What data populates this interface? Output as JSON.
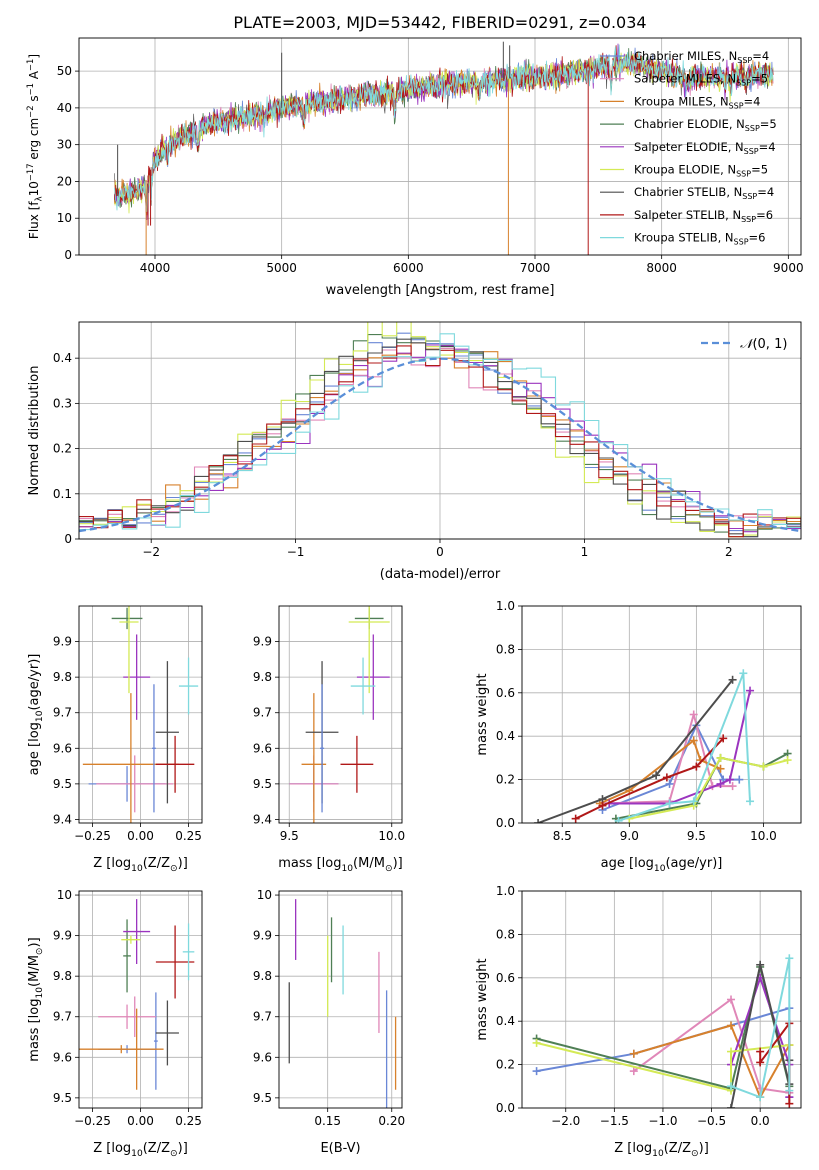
{
  "title": "PLATE=2003, MJD=53442, FIBERID=0291, z=0.034",
  "series_styles": [
    {
      "name": "Chabrier MILES",
      "nssp": "4",
      "color": "#6a87d6"
    },
    {
      "name": "Salpeter MILES",
      "nssp": "5",
      "color": "#e087b8"
    },
    {
      "name": "Kroupa MILES",
      "nssp": "4",
      "color": "#d7812c"
    },
    {
      "name": "Chabrier ELODIE",
      "nssp": "5",
      "color": "#4f7f55"
    },
    {
      "name": "Salpeter ELODIE",
      "nssp": "4",
      "color": "#9b35bf"
    },
    {
      "name": "Kroupa ELODIE",
      "nssp": "5",
      "color": "#d4ea55"
    },
    {
      "name": "Chabrier STELIB",
      "nssp": "4",
      "color": "#4d4d4d"
    },
    {
      "name": "Salpeter STELIB",
      "nssp": "6",
      "color": "#b01818"
    },
    {
      "name": "Kroupa STELIB",
      "nssp": "6",
      "color": "#7fd9dd"
    }
  ],
  "chart_data": [
    {
      "id": "spectrum",
      "type": "line",
      "xlabel": "wavelength [Angstrom, rest frame]",
      "ylabel_parts": [
        "Flux [f",
        "λ",
        "10",
        "−17",
        " erg cm",
        "−2",
        " s",
        "−1",
        " A",
        "−1",
        "]"
      ],
      "xlim": [
        3400,
        9100
      ],
      "ylim": [
        0,
        59
      ],
      "xticks": [
        4000,
        5000,
        6000,
        7000,
        8000,
        9000
      ],
      "yticks": [
        0,
        10,
        20,
        30,
        40,
        50
      ],
      "continuum_x": [
        3700,
        3800,
        3900,
        4000,
        4100,
        4200,
        4300,
        4400,
        4500,
        4600,
        4800,
        5000,
        5200,
        5400,
        5600,
        5800,
        6000,
        6200,
        6400,
        6600,
        6800,
        7000,
        7200,
        7400,
        7600,
        7800,
        8000,
        8200,
        8400,
        8600,
        8800
      ],
      "continuum_y": [
        16,
        17,
        18,
        26,
        30,
        32,
        33,
        35,
        36,
        37,
        38,
        40,
        41,
        42,
        43,
        44,
        45,
        46,
        47,
        47,
        48,
        48.5,
        49,
        50,
        52,
        52,
        50,
        48,
        48.5,
        49,
        49
      ],
      "line_features": [
        [
          3934,
          -8
        ],
        [
          3969,
          -7
        ],
        [
          4102,
          -3
        ],
        [
          4340,
          -4
        ],
        [
          4861,
          -3
        ],
        [
          5175,
          -5
        ],
        [
          5892,
          -6
        ],
        [
          6563,
          -3
        ],
        [
          7600,
          -6
        ],
        [
          8200,
          -2
        ],
        [
          8500,
          -3
        ],
        [
          8542,
          -4
        ],
        [
          8662,
          -3
        ]
      ],
      "spikes": [
        [
          3930,
          0,
          2
        ],
        [
          6790,
          0,
          2
        ],
        [
          7420,
          0,
          7
        ],
        [
          5000,
          55,
          6
        ],
        [
          6750,
          58,
          6
        ],
        [
          6800,
          57,
          6
        ],
        [
          3705,
          30,
          6
        ],
        [
          3945,
          8,
          7
        ],
        [
          3965,
          8,
          7
        ]
      ],
      "legend_position": "upper right"
    },
    {
      "id": "residuals",
      "type": "histogram",
      "xlabel": "(data-model)/error",
      "ylabel": "Normed distribution",
      "xlim": [
        -2.5,
        2.5
      ],
      "ylim": [
        0,
        0.48
      ],
      "xticks": [
        -2,
        -1,
        0,
        1,
        2
      ],
      "yticks": [
        0,
        0.1,
        0.2,
        0.3,
        0.4
      ],
      "bin_width": 0.1,
      "gaussian_label_parts": [
        "𝒩",
        "(0, 1)"
      ],
      "gaussian_color": "#5a8fd8",
      "legend_position": "upper right"
    },
    {
      "id": "age-vs-Z",
      "type": "errorbar",
      "xlabel_parts": [
        "Z [log",
        "10",
        "(Z/Z",
        "⊙",
        ")]"
      ],
      "ylabel_parts": [
        "age  [log",
        "10",
        "(age/yr)]"
      ],
      "xlim": [
        -0.32,
        0.32
      ],
      "ylim": [
        9.39,
        10.0
      ],
      "xticks": [
        -0.25,
        0,
        0.25
      ],
      "xtick_labels": [
        "−0.25",
        "0.00",
        "0.25"
      ],
      "yticks": [
        9.4,
        9.5,
        9.6,
        9.7,
        9.8,
        9.9
      ],
      "points": [
        {
          "x": -0.07,
          "y": 9.5,
          "xerr": 0.2,
          "yerr": 0.05,
          "c": 0
        },
        {
          "x": -0.03,
          "y": 9.5,
          "xerr": 0.2,
          "yerr": 0.08,
          "c": 1
        },
        {
          "x": -0.05,
          "y": 9.555,
          "xerr": 0.25,
          "yerr": 0.2,
          "c": 2
        },
        {
          "x": -0.07,
          "y": 9.965,
          "xerr": 0.08,
          "yerr": 0.03,
          "c": 3
        },
        {
          "x": -0.02,
          "y": 9.8,
          "xerr": 0.07,
          "yerr": 0.12,
          "c": 4
        },
        {
          "x": -0.06,
          "y": 9.955,
          "xerr": 0.05,
          "yerr": 0.2,
          "c": 5
        },
        {
          "x": 0.14,
          "y": 9.645,
          "xerr": 0.06,
          "yerr": 0.2,
          "c": 6
        },
        {
          "x": 0.18,
          "y": 9.555,
          "xerr": 0.1,
          "yerr": 0.08,
          "c": 7
        },
        {
          "x": 0.25,
          "y": 9.775,
          "xerr": 0.05,
          "yerr": 0.08,
          "c": 8
        },
        {
          "x": 0.07,
          "y": 9.6,
          "xerr": 0.01,
          "yerr": 0.18,
          "c": 0
        }
      ]
    },
    {
      "id": "age-vs-mass",
      "type": "errorbar",
      "xlabel_parts": [
        "mass [log",
        "10",
        "(M/M",
        "⊙",
        ")]"
      ],
      "xlim": [
        9.45,
        10.05
      ],
      "ylim": [
        9.39,
        10.0
      ],
      "xticks": [
        9.5,
        10.0
      ],
      "xtick_labels": [
        "9.5",
        "10.0"
      ],
      "yticks": [
        9.4,
        9.5,
        9.6,
        9.7,
        9.8,
        9.9
      ],
      "points": [
        {
          "x": 9.62,
          "y": 9.5,
          "xerr": 0.12,
          "yerr": 0.05,
          "c": 0
        },
        {
          "x": 9.62,
          "y": 9.5,
          "xerr": 0.12,
          "yerr": 0.08,
          "c": 1
        },
        {
          "x": 9.62,
          "y": 9.555,
          "xerr": 0.06,
          "yerr": 0.2,
          "c": 2
        },
        {
          "x": 9.89,
          "y": 9.965,
          "xerr": 0.07,
          "yerr": 0.03,
          "c": 3
        },
        {
          "x": 9.91,
          "y": 9.8,
          "xerr": 0.08,
          "yerr": 0.12,
          "c": 4
        },
        {
          "x": 9.89,
          "y": 9.955,
          "xerr": 0.1,
          "yerr": 0.2,
          "c": 5
        },
        {
          "x": 9.66,
          "y": 9.645,
          "xerr": 0.08,
          "yerr": 0.2,
          "c": 6
        },
        {
          "x": 9.83,
          "y": 9.555,
          "xerr": 0.08,
          "yerr": 0.08,
          "c": 7
        },
        {
          "x": 9.86,
          "y": 9.775,
          "xerr": 0.06,
          "yerr": 0.08,
          "c": 8
        },
        {
          "x": 9.66,
          "y": 9.6,
          "xerr": 0.01,
          "yerr": 0.18,
          "c": 0
        }
      ]
    },
    {
      "id": "massweight-vs-age",
      "type": "line",
      "xlabel_parts": [
        "age  [log",
        "10",
        "(age/yr)]"
      ],
      "ylabel": "mass weight",
      "xlim": [
        8.2,
        10.28
      ],
      "ylim": [
        0,
        1.0
      ],
      "xticks": [
        8.5,
        9.0,
        9.5,
        10.0
      ],
      "xtick_labels": [
        "8.5",
        "9.0",
        "9.5",
        "10.0"
      ],
      "yticks": [
        0,
        0.2,
        0.4,
        0.6,
        0.8,
        1.0
      ],
      "ytick_labels": [
        "0.0",
        "0.2",
        "0.4",
        "0.6",
        "0.8",
        "1.0"
      ],
      "series": [
        {
          "c": 0,
          "x": [
            8.8,
            9.3,
            9.5,
            9.7,
            9.82
          ],
          "y": [
            0.06,
            0.18,
            0.45,
            0.2,
            0.2
          ]
        },
        {
          "c": 1,
          "x": [
            8.8,
            9.3,
            9.48,
            9.62,
            9.77
          ],
          "y": [
            0.09,
            0.1,
            0.5,
            0.17,
            0.17
          ]
        },
        {
          "c": 2,
          "x": [
            8.78,
            9.0,
            9.48,
            9.53,
            9.68
          ],
          "y": [
            0.09,
            0.15,
            0.38,
            0.29,
            0.25
          ]
        },
        {
          "c": 3,
          "x": [
            8.9,
            9.5,
            9.68,
            10.0,
            10.18
          ],
          "y": [
            0.02,
            0.09,
            0.3,
            0.26,
            0.32
          ]
        },
        {
          "c": 4,
          "x": [
            8.85,
            9.3,
            9.68,
            9.75,
            9.9
          ],
          "y": [
            0.09,
            0.09,
            0.18,
            0.2,
            0.61
          ]
        },
        {
          "c": 5,
          "x": [
            9.0,
            9.48,
            9.68,
            10.0,
            10.18
          ],
          "y": [
            0.02,
            0.08,
            0.3,
            0.26,
            0.29
          ]
        },
        {
          "c": 6,
          "x": [
            8.32,
            8.8,
            9.2,
            9.77
          ],
          "y": [
            0.0,
            0.11,
            0.22,
            0.66
          ]
        },
        {
          "c": 7,
          "x": [
            8.6,
            8.8,
            9.28,
            9.5,
            9.7
          ],
          "y": [
            0.02,
            0.08,
            0.21,
            0.26,
            0.39
          ]
        },
        {
          "c": 8,
          "x": [
            8.92,
            9.3,
            9.48,
            9.85,
            9.9
          ],
          "y": [
            0.01,
            0.09,
            0.1,
            0.69,
            0.1
          ]
        }
      ]
    },
    {
      "id": "mass-vs-Z",
      "type": "errorbar",
      "xlabel_parts": [
        "Z [log",
        "10",
        "(Z/Z",
        "⊙",
        ")]"
      ],
      "ylabel_parts": [
        "mass [log",
        "10",
        "(M/M",
        "⊙",
        ")]"
      ],
      "xlim": [
        -0.32,
        0.32
      ],
      "ylim": [
        9.475,
        10.01
      ],
      "xticks": [
        -0.25,
        0,
        0.25
      ],
      "xtick_labels": [
        "−0.25",
        "0.00",
        "0.25"
      ],
      "yticks": [
        9.5,
        9.6,
        9.7,
        9.8,
        9.9,
        10.0
      ],
      "points": [
        {
          "x": -0.07,
          "y": 9.62,
          "xerr": 0.15,
          "yerr": 0.01,
          "c": 0
        },
        {
          "x": 0.08,
          "y": 9.64,
          "xerr": 0.01,
          "yerr": 0.12,
          "c": 0
        },
        {
          "x": -0.07,
          "y": 9.7,
          "xerr": 0.15,
          "yerr": 0.03,
          "c": 1
        },
        {
          "x": -0.03,
          "y": 9.7,
          "xerr": 0.01,
          "yerr": 0.05,
          "c": 1
        },
        {
          "x": -0.1,
          "y": 9.62,
          "xerr": 0.22,
          "yerr": 0.01,
          "c": 2
        },
        {
          "x": -0.02,
          "y": 9.62,
          "xerr": 0.01,
          "yerr": 0.1,
          "c": 2
        },
        {
          "x": -0.07,
          "y": 9.85,
          "xerr": 0.02,
          "yerr": 0.09,
          "c": 3
        },
        {
          "x": -0.02,
          "y": 9.91,
          "xerr": 0.07,
          "yerr": 0.08,
          "c": 4
        },
        {
          "x": -0.05,
          "y": 9.89,
          "xerr": 0.05,
          "yerr": 0.01,
          "c": 5
        },
        {
          "x": 0.14,
          "y": 9.66,
          "xerr": 0.06,
          "yerr": 0.08,
          "c": 6
        },
        {
          "x": 0.18,
          "y": 9.835,
          "xerr": 0.1,
          "yerr": 0.09,
          "c": 7
        },
        {
          "x": 0.25,
          "y": 9.86,
          "xerr": 0.03,
          "yerr": 0.07,
          "c": 8
        }
      ]
    },
    {
      "id": "mass-vs-EBV",
      "type": "errorbar",
      "xlabel": "E(B-V)",
      "xlim": [
        0.112,
        0.208
      ],
      "ylim": [
        9.475,
        10.01
      ],
      "xticks": [
        0.15,
        0.2
      ],
      "xtick_labels": [
        "0.15",
        "0.20"
      ],
      "yticks": [
        9.5,
        9.6,
        9.7,
        9.8,
        9.9,
        10.0
      ],
      "points": [
        {
          "x": 0.12,
          "y": 9.685,
          "xerr": 0,
          "yerr": 0.1,
          "c": 6
        },
        {
          "x": 0.125,
          "y": 9.915,
          "xerr": 0,
          "yerr": 0.075,
          "c": 4
        },
        {
          "x": 0.15,
          "y": 9.8,
          "xerr": 0,
          "yerr": 0.1,
          "c": 5
        },
        {
          "x": 0.153,
          "y": 9.865,
          "xerr": 0,
          "yerr": 0.08,
          "c": 3
        },
        {
          "x": 0.162,
          "y": 9.84,
          "xerr": 0,
          "yerr": 0.085,
          "c": 8
        },
        {
          "x": 0.19,
          "y": 9.76,
          "xerr": 0,
          "yerr": 0.1,
          "c": 1
        },
        {
          "x": 0.196,
          "y": 9.555,
          "xerr": 0,
          "yerr": 0.21,
          "c": 0
        },
        {
          "x": 0.203,
          "y": 9.61,
          "xerr": 0,
          "yerr": 0.09,
          "c": 2
        }
      ]
    },
    {
      "id": "massweight-vs-Z",
      "type": "line",
      "xlabel_parts": [
        "Z [log",
        "10",
        "(Z/Z",
        "⊙",
        ")]"
      ],
      "ylabel": "mass weight",
      "xlim": [
        -2.45,
        0.42
      ],
      "ylim": [
        0,
        1.0
      ],
      "xticks": [
        -2.0,
        -1.5,
        -1.0,
        -0.5,
        0.0
      ],
      "xtick_labels": [
        "−2.0",
        "−1.5",
        "−1.0",
        "−0.5",
        "0.0"
      ],
      "yticks": [
        0,
        0.2,
        0.4,
        0.6,
        0.8,
        1.0
      ],
      "ytick_labels": [
        "0.0",
        "0.2",
        "0.4",
        "0.6",
        "0.8",
        "1.0"
      ],
      "series": [
        {
          "c": 0,
          "x": [
            -2.3,
            -1.3,
            0.3,
            0.3
          ],
          "y": [
            0.17,
            0.25,
            0.46,
            0.05
          ]
        },
        {
          "c": 1,
          "x": [
            -1.3,
            -0.3,
            0.0,
            0.3
          ],
          "y": [
            0.17,
            0.5,
            0.09,
            0.07
          ]
        },
        {
          "c": 2,
          "x": [
            -1.3,
            -0.3,
            0.0,
            0.3
          ],
          "y": [
            0.25,
            0.38,
            0.05,
            0.29
          ]
        },
        {
          "c": 3,
          "x": [
            -2.3,
            -0.3,
            0.0,
            0.3
          ],
          "y": [
            0.32,
            0.09,
            0.65,
            0.1
          ]
        },
        {
          "c": 4,
          "x": [
            -0.3,
            0.0,
            0.3,
            0.3
          ],
          "y": [
            0.2,
            0.6,
            0.2,
            0.05
          ]
        },
        {
          "c": 5,
          "x": [
            -2.3,
            -0.3,
            -0.3,
            0.3
          ],
          "y": [
            0.3,
            0.08,
            0.26,
            0.29
          ]
        },
        {
          "c": 6,
          "x": [
            -0.3,
            0.0,
            0.3,
            0.3
          ],
          "y": [
            0.0,
            0.66,
            0.11,
            0.22
          ]
        },
        {
          "c": 7,
          "x": [
            0.0,
            0.0,
            0.3,
            0.3
          ],
          "y": [
            0.26,
            0.21,
            0.39,
            0.02
          ]
        },
        {
          "c": 8,
          "x": [
            -0.3,
            0.0,
            0.3,
            0.3
          ],
          "y": [
            0.1,
            0.05,
            0.69,
            0.08
          ]
        }
      ]
    }
  ]
}
